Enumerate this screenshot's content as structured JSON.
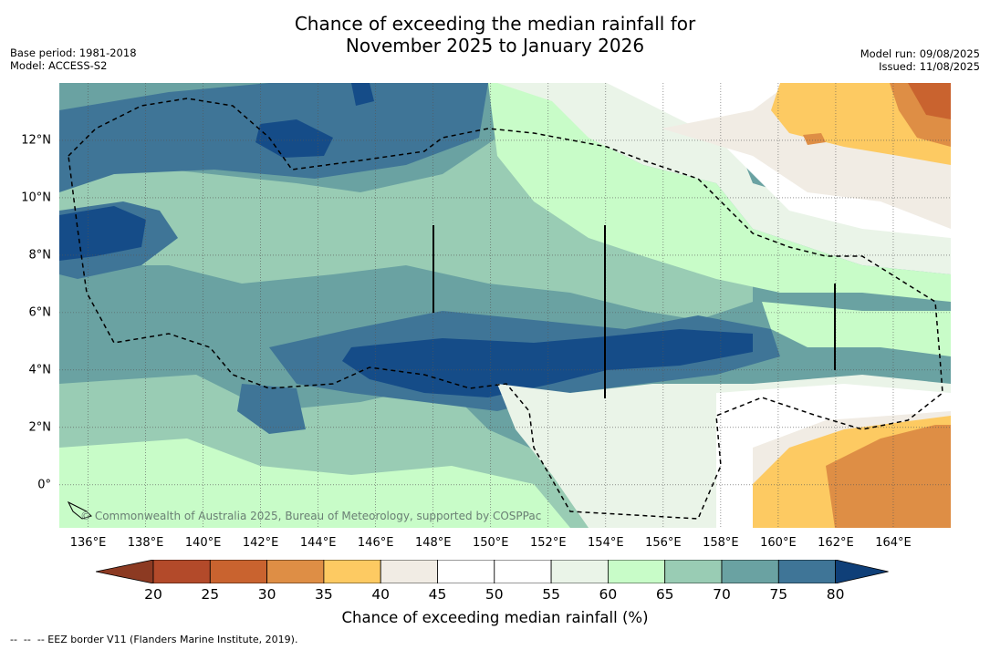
{
  "title": {
    "line1": "Chance of exceeding the median rainfall for",
    "line2": "November 2025 to January 2026"
  },
  "meta_left": {
    "base_period": "Base period: 1981-2018",
    "model": "Model: ACCESS-S2"
  },
  "meta_right": {
    "model_run": "Model run: 09/08/2025",
    "issued": "Issued: 11/08/2025"
  },
  "map": {
    "lon_labels": [
      "136°E",
      "138°E",
      "140°E",
      "142°E",
      "144°E",
      "146°E",
      "148°E",
      "150°E",
      "152°E",
      "154°E",
      "156°E",
      "158°E",
      "160°E",
      "162°E",
      "164°E"
    ],
    "lon_values": [
      136,
      138,
      140,
      142,
      144,
      146,
      148,
      150,
      152,
      154,
      156,
      158,
      160,
      162,
      164
    ],
    "lat_labels": [
      "12°N",
      "10°N",
      "8°N",
      "6°N",
      "4°N",
      "2°N",
      "0°"
    ],
    "lat_values": [
      12,
      10,
      8,
      6,
      4,
      2,
      0
    ],
    "lon_range": [
      135,
      166
    ],
    "lat_range": [
      -1.5,
      14
    ],
    "grid": true,
    "copyright": "© Commonwealth of Australia 2025, Bureau of Meteorology, supported by COSPPac"
  },
  "colorbar": {
    "ticks": [
      "20",
      "25",
      "30",
      "35",
      "40",
      "45",
      "50",
      "55",
      "60",
      "65",
      "70",
      "75",
      "80"
    ],
    "colors": [
      "#b34a2a",
      "#c9632f",
      "#de8e45",
      "#fdca62",
      "#f1ece4",
      "#ffffff",
      "#ffffff",
      "#eaf4e8",
      "#c8fcc8",
      "#99ccb4",
      "#6aa2a2",
      "#3f7597",
      "#154c88"
    ],
    "low_color": "#8c3a22",
    "high_color": "#0f3f78",
    "label": "Chance of exceeding median rainfall (%)"
  },
  "footnote": "--  --  -- EEZ border V11 (Flanders Marine Institute, 2019)."
}
